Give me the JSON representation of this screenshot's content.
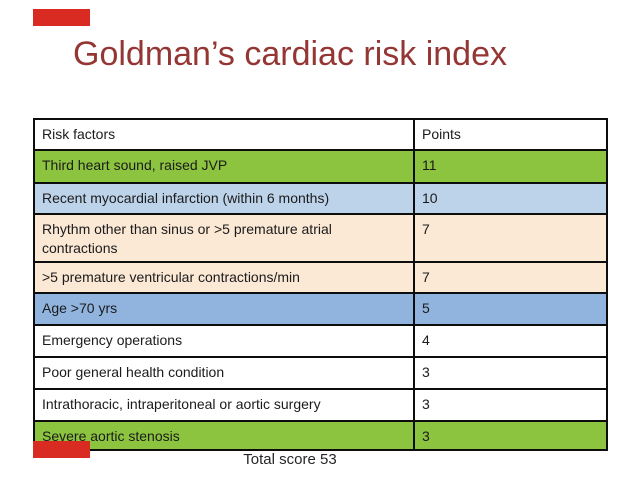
{
  "slide": {
    "title": "Goldman’s cardiac risk index",
    "title_color": "#943634",
    "accent_color": "#d92b21",
    "background_color": "#ffffff",
    "footer": "Total score 53"
  },
  "table": {
    "headers": [
      "Risk factors",
      "Points"
    ],
    "rows": [
      {
        "factor": "Third heart sound, raised JVP",
        "points": "11",
        "bg": "green"
      },
      {
        "factor": "Recent myocardial infarction (within 6 months)",
        "points": "10",
        "bg": "lightblue"
      },
      {
        "factor": "Rhythm other than sinus or >5 premature atrial contractions",
        "points": "7",
        "bg": "peach"
      },
      {
        "factor": ">5 premature ventricular contractions/min",
        "points": "7",
        "bg": "peach"
      },
      {
        "factor": "Age >70 yrs",
        "points": "5",
        "bg": "blue"
      },
      {
        "factor": "Emergency operations",
        "points": "4",
        "bg": "white"
      },
      {
        "factor": "Poor general health condition",
        "points": "3",
        "bg": "white"
      },
      {
        "factor": "Intrathoracic, intraperitoneal or aortic surgery",
        "points": "3",
        "bg": "white"
      },
      {
        "factor": "Severe aortic stenosis",
        "points": "3",
        "bg": "green"
      }
    ],
    "row_colors": {
      "green": "#8cc43f",
      "lightblue": "#bdd3ea",
      "peach": "#fbe8d5",
      "blue": "#90b4dd",
      "white": "#ffffff"
    },
    "border_color": "#0d0d0d"
  }
}
